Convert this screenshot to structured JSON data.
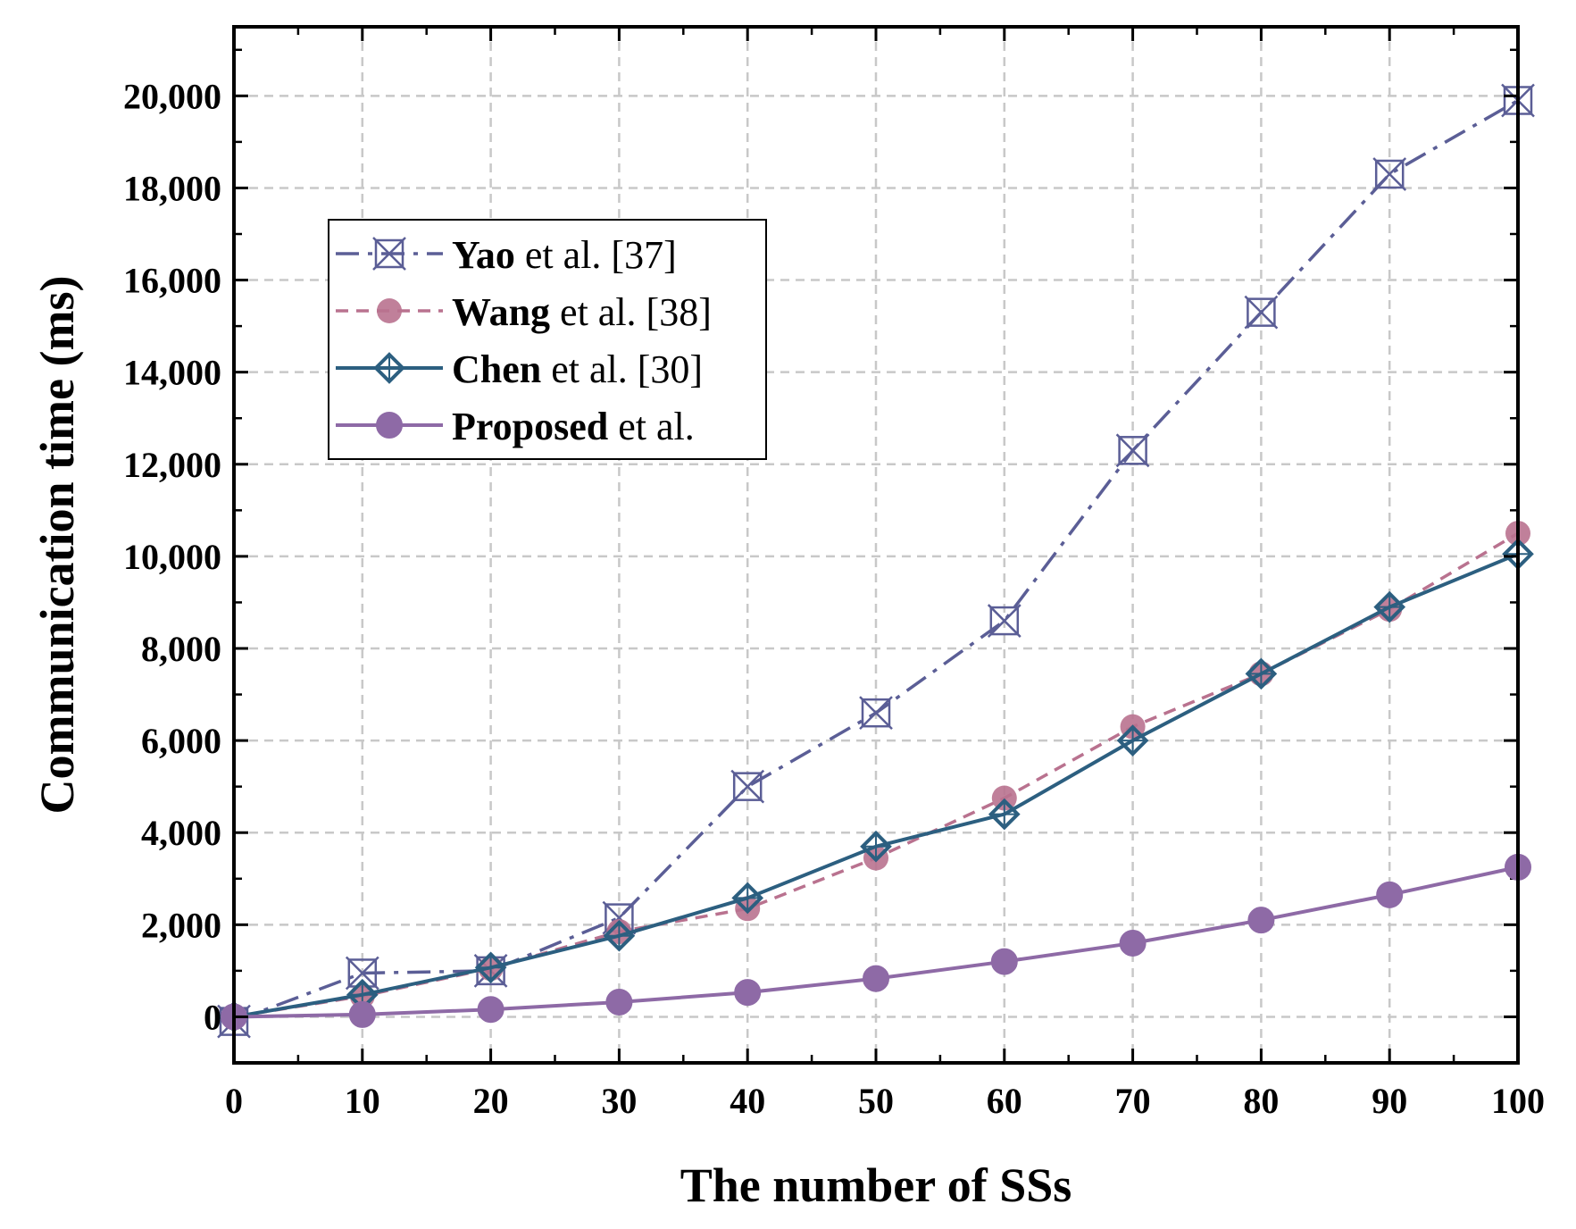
{
  "chart_data": {
    "type": "line",
    "xlabel": "The number of SSs",
    "ylabel": "Communication time (ms)",
    "xlim": [
      0,
      100
    ],
    "ylim": [
      -1000,
      21500
    ],
    "xticks": [
      0,
      10,
      20,
      30,
      40,
      50,
      60,
      70,
      80,
      90,
      100
    ],
    "xtick_labels": [
      "0",
      "10",
      "20",
      "30",
      "40",
      "50",
      "60",
      "70",
      "80",
      "90",
      "100"
    ],
    "yticks": [
      0,
      2000,
      4000,
      6000,
      8000,
      10000,
      12000,
      14000,
      16000,
      18000,
      20000
    ],
    "ytick_labels": [
      "0",
      "2,000",
      "4,000",
      "6,000",
      "8,000",
      "10,000",
      "12,000",
      "14,000",
      "16,000",
      "18,000",
      "20,000"
    ],
    "grid": true,
    "legend_position": "upper-left",
    "x": [
      0,
      10,
      20,
      30,
      40,
      50,
      60,
      70,
      80,
      90,
      100
    ],
    "series": [
      {
        "name_bold": "Yao",
        "name_rest": " et al. [37]",
        "color": "#5b5e96",
        "marker": "x-square",
        "dash": "dashdot",
        "values": [
          -100,
          950,
          1000,
          2150,
          5000,
          6600,
          8600,
          12300,
          15300,
          18300,
          19900
        ]
      },
      {
        "name_bold": "Wang",
        "name_rest": " et al. [38]",
        "color": "#b9728f",
        "marker": "circle",
        "dash": "dashed",
        "values": [
          0,
          450,
          1050,
          1850,
          2350,
          3450,
          4750,
          6300,
          7450,
          8850,
          10500
        ]
      },
      {
        "name_bold": "Chen",
        "name_rest": " et al. [30]",
        "color": "#2c5f80",
        "marker": "diamond",
        "dash": "solid",
        "values": [
          0,
          480,
          1070,
          1760,
          2580,
          3700,
          4400,
          6000,
          7450,
          8900,
          10050
        ]
      },
      {
        "name_bold": "Proposed",
        "name_rest": " et al.",
        "color": "#8e6aa6",
        "marker": "filled-circle",
        "dash": "solid",
        "values": [
          0,
          50,
          160,
          320,
          530,
          830,
          1200,
          1600,
          2100,
          2650,
          3250
        ]
      }
    ]
  }
}
